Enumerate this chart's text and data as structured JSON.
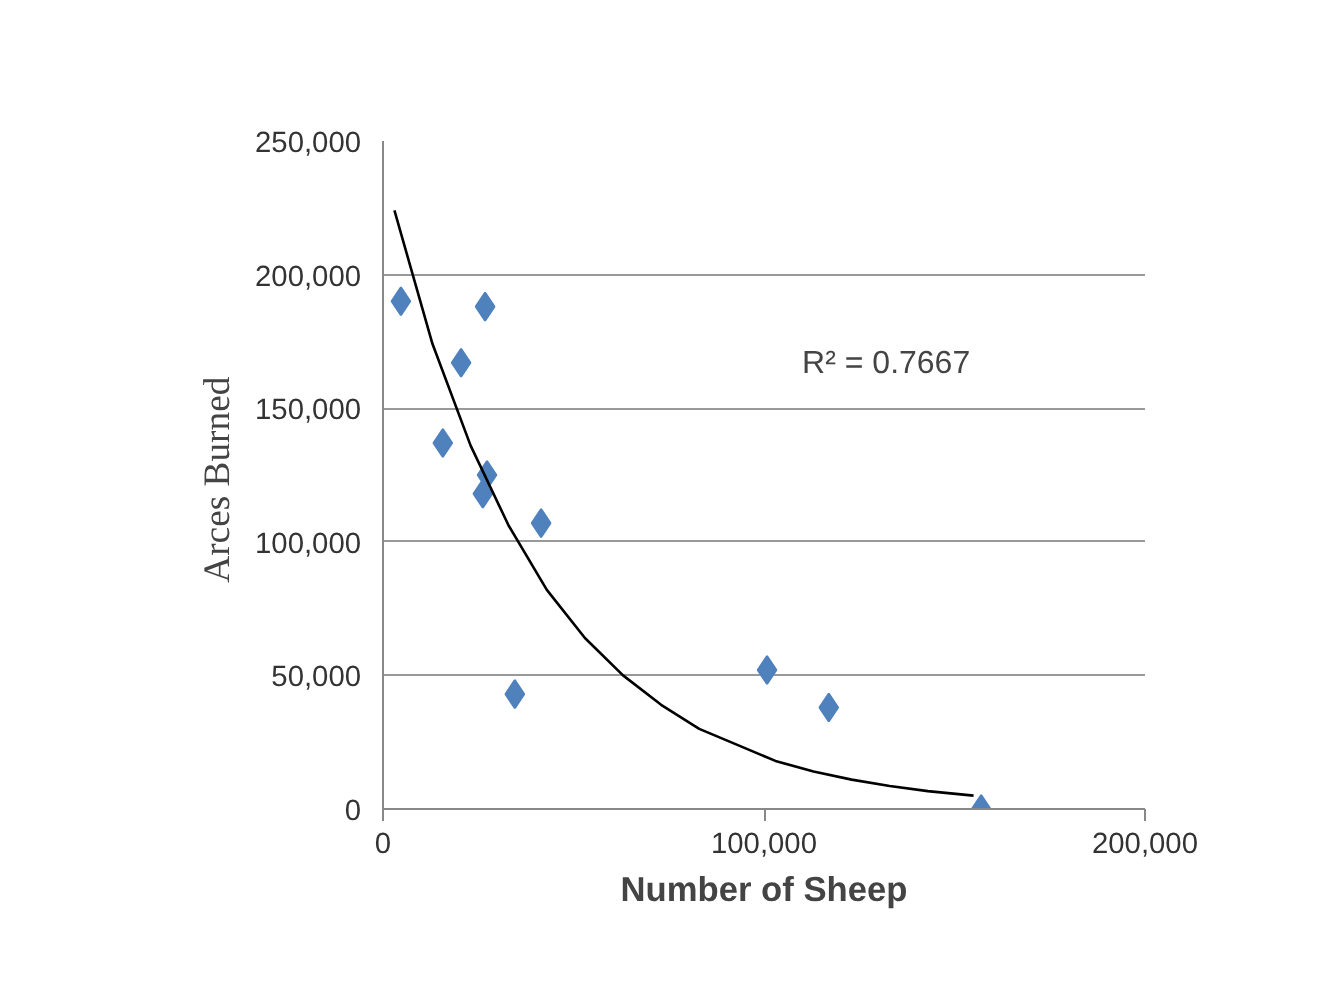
{
  "chart_data": {
    "type": "scatter",
    "xlabel": "Number of Sheep",
    "ylabel": "Arces  Burned",
    "x": [
      4700,
      26800,
      20500,
      15700,
      27300,
      26200,
      41500,
      34600,
      100800,
      117000,
      157000
    ],
    "series": [
      {
        "color": "#4f81bd",
        "marker": "diamond",
        "values": [
          190000,
          188000,
          167000,
          137000,
          125000,
          118000,
          107000,
          43000,
          52000,
          38000,
          0
        ]
      },
      {
        "type": "line",
        "color": "#000000",
        "marker": "none",
        "x": [
          3000,
          13000,
          23000,
          33000,
          43000,
          53000,
          63000,
          73000,
          83000,
          93000,
          103000,
          113000,
          123000,
          133000,
          143000,
          155000
        ],
        "values": [
          224000,
          174000,
          136000,
          106000,
          82000,
          64000,
          50000,
          39000,
          30000,
          24000,
          18000,
          14000,
          11000,
          8600,
          6700,
          5000
        ]
      }
    ],
    "annotations": [
      "R² = 0.7667"
    ],
    "xlim": [
      0,
      200000
    ],
    "ylim": [
      0,
      250000
    ],
    "xticks": [
      {
        "value": 0,
        "label": "0"
      },
      {
        "value": 100000,
        "label": "100,000"
      },
      {
        "value": 200000,
        "label": "200,000"
      }
    ],
    "yticks": [
      {
        "value": 0,
        "label": "0"
      },
      {
        "value": 50000,
        "label": "50,000"
      },
      {
        "value": 100000,
        "label": "100,000"
      },
      {
        "value": 150000,
        "label": "150,000"
      },
      {
        "value": 200000,
        "label": "200,000"
      },
      {
        "value": 250000,
        "label": "250,000"
      }
    ],
    "grid": "y"
  }
}
